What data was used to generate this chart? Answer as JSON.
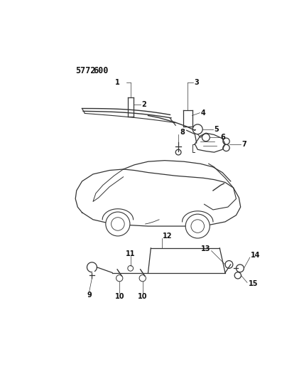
{
  "title_part1": "5772",
  "title_part2": "600",
  "bg_color": "#ffffff",
  "line_color": "#333333",
  "label_color": "#111111",
  "label_fontsize": 7,
  "title_fontsize": 8.5
}
